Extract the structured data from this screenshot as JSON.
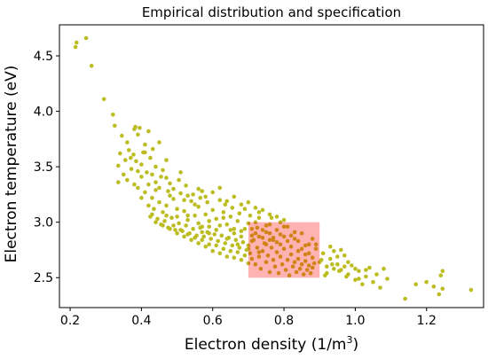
{
  "chart_data": {
    "type": "scatter",
    "title": "Empirical distribution and specification",
    "xlabel": "Electron density (1/m",
    "xlabel_sup": "3",
    "xlabel_suffix": ")",
    "ylabel": "Electron temperature (eV)",
    "xlim": [
      0.17,
      1.36
    ],
    "ylim": [
      2.23,
      4.78
    ],
    "xticks": [
      0.2,
      0.4,
      0.6,
      0.8,
      1.0,
      1.2
    ],
    "xtick_labels": [
      "0.2",
      "0.4",
      "0.6",
      "0.8",
      "1.0",
      "1.2"
    ],
    "yticks": [
      2.5,
      3.0,
      3.5,
      4.0,
      4.5
    ],
    "ytick_labels": [
      "2.5",
      "3.0",
      "3.5",
      "4.0",
      "4.5"
    ],
    "grid": false,
    "legend": "none",
    "series_color": "#bcbd22",
    "specification_region": {
      "x_range": [
        0.7,
        0.9
      ],
      "y_range": [
        2.5,
        3.0
      ],
      "color": "#ff0000",
      "opacity": 0.3
    },
    "points": [
      [
        0.215,
        4.58
      ],
      [
        0.218,
        4.62
      ],
      [
        0.245,
        4.66
      ],
      [
        0.26,
        4.41
      ],
      [
        0.295,
        4.11
      ],
      [
        0.32,
        3.97
      ],
      [
        0.325,
        3.87
      ],
      [
        0.34,
        3.62
      ],
      [
        0.345,
        3.78
      ],
      [
        0.335,
        3.51
      ],
      [
        0.36,
        3.72
      ],
      [
        0.365,
        3.65
      ],
      [
        0.38,
        3.84
      ],
      [
        0.383,
        3.86
      ],
      [
        0.39,
        3.79
      ],
      [
        0.395,
        3.85
      ],
      [
        0.41,
        3.7
      ],
      [
        0.42,
        3.82
      ],
      [
        0.35,
        3.43
      ],
      [
        0.355,
        3.56
      ],
      [
        0.372,
        3.48
      ],
      [
        0.378,
        3.61
      ],
      [
        0.385,
        3.55
      ],
      [
        0.4,
        3.52
      ],
      [
        0.405,
        3.63
      ],
      [
        0.415,
        3.45
      ],
      [
        0.425,
        3.58
      ],
      [
        0.432,
        3.66
      ],
      [
        0.44,
        3.5
      ],
      [
        0.45,
        3.72
      ],
      [
        0.46,
        3.47
      ],
      [
        0.47,
        3.56
      ],
      [
        0.335,
        3.36
      ],
      [
        0.36,
        3.38
      ],
      [
        0.39,
        3.31
      ],
      [
        0.41,
        3.27
      ],
      [
        0.42,
        3.34
      ],
      [
        0.43,
        3.22
      ],
      [
        0.44,
        3.29
      ],
      [
        0.45,
        3.18
      ],
      [
        0.455,
        3.41
      ],
      [
        0.46,
        3.09
      ],
      [
        0.47,
        3.15
      ],
      [
        0.475,
        3.28
      ],
      [
        0.48,
        3.35
      ],
      [
        0.49,
        3.21
      ],
      [
        0.5,
        3.12
      ],
      [
        0.505,
        3.38
      ],
      [
        0.51,
        3.26
      ],
      [
        0.52,
        3.1
      ],
      [
        0.525,
        3.33
      ],
      [
        0.53,
        3.02
      ],
      [
        0.54,
        3.19
      ],
      [
        0.545,
        3.25
      ],
      [
        0.55,
        3.06
      ],
      [
        0.56,
        3.14
      ],
      [
        0.565,
        3.22
      ],
      [
        0.57,
        3.28
      ],
      [
        0.58,
        3.07
      ],
      [
        0.585,
        3.18
      ],
      [
        0.59,
        2.96
      ],
      [
        0.6,
        3.11
      ],
      [
        0.61,
        3.03
      ],
      [
        0.62,
        3.2
      ],
      [
        0.63,
        3.09
      ],
      [
        0.635,
        3.16
      ],
      [
        0.64,
        2.98
      ],
      [
        0.65,
        3.05
      ],
      [
        0.655,
        3.13
      ],
      [
        0.66,
        2.94
      ],
      [
        0.67,
        3.01
      ],
      [
        0.675,
        3.08
      ],
      [
        0.68,
        2.92
      ],
      [
        0.69,
        3.12
      ],
      [
        0.7,
        2.99
      ],
      [
        0.705,
        3.06
      ],
      [
        0.71,
        2.88
      ],
      [
        0.72,
        3.0
      ],
      [
        0.725,
        2.95
      ],
      [
        0.73,
        3.09
      ],
      [
        0.74,
        2.86
      ],
      [
        0.75,
        2.97
      ],
      [
        0.76,
        2.9
      ],
      [
        0.765,
        3.04
      ],
      [
        0.77,
        2.84
      ],
      [
        0.78,
        2.93
      ],
      [
        0.79,
        2.8
      ],
      [
        0.8,
        2.87
      ],
      [
        0.81,
        2.96
      ],
      [
        0.82,
        2.78
      ],
      [
        0.83,
        2.85
      ],
      [
        0.84,
        2.74
      ],
      [
        0.85,
        2.9
      ],
      [
        0.86,
        2.71
      ],
      [
        0.87,
        2.8
      ],
      [
        0.88,
        2.68
      ],
      [
        0.89,
        2.76
      ],
      [
        0.9,
        2.64
      ],
      [
        0.91,
        2.72
      ],
      [
        0.92,
        2.6
      ],
      [
        0.93,
        2.67
      ],
      [
        0.94,
        2.74
      ],
      [
        0.95,
        2.62
      ],
      [
        0.96,
        2.57
      ],
      [
        0.97,
        2.7
      ],
      [
        0.98,
        2.53
      ],
      [
        0.99,
        2.61
      ],
      [
        1.0,
        2.48
      ],
      [
        1.01,
        2.56
      ],
      [
        1.02,
        2.44
      ],
      [
        1.03,
        2.51
      ],
      [
        1.04,
        2.59
      ],
      [
        1.05,
        2.46
      ],
      [
        1.06,
        2.53
      ],
      [
        1.07,
        2.41
      ],
      [
        1.08,
        2.58
      ],
      [
        1.09,
        2.49
      ],
      [
        1.14,
        2.31
      ],
      [
        1.17,
        2.44
      ],
      [
        1.2,
        2.46
      ],
      [
        1.22,
        2.42
      ],
      [
        1.235,
        2.35
      ],
      [
        1.24,
        2.52
      ],
      [
        1.245,
        2.56
      ],
      [
        1.245,
        2.4
      ],
      [
        1.325,
        2.39
      ],
      [
        0.7,
        2.79
      ],
      [
        0.705,
        2.72
      ],
      [
        0.71,
        2.67
      ],
      [
        0.715,
        2.84
      ],
      [
        0.72,
        2.62
      ],
      [
        0.725,
        2.77
      ],
      [
        0.73,
        2.69
      ],
      [
        0.735,
        2.58
      ],
      [
        0.74,
        2.74
      ],
      [
        0.745,
        2.81
      ],
      [
        0.75,
        2.64
      ],
      [
        0.755,
        2.7
      ],
      [
        0.76,
        2.55
      ],
      [
        0.765,
        2.77
      ],
      [
        0.77,
        2.66
      ],
      [
        0.775,
        2.6
      ],
      [
        0.78,
        2.73
      ],
      [
        0.785,
        2.54
      ],
      [
        0.79,
        2.69
      ],
      [
        0.795,
        2.62
      ],
      [
        0.8,
        2.76
      ],
      [
        0.805,
        2.57
      ],
      [
        0.81,
        2.66
      ],
      [
        0.815,
        2.52
      ],
      [
        0.82,
        2.71
      ],
      [
        0.825,
        2.6
      ],
      [
        0.83,
        2.64
      ],
      [
        0.835,
        2.55
      ],
      [
        0.84,
        2.67
      ],
      [
        0.845,
        2.58
      ],
      [
        0.85,
        2.62
      ],
      [
        0.855,
        2.53
      ],
      [
        0.86,
        2.65
      ],
      [
        0.865,
        2.57
      ],
      [
        0.87,
        2.61
      ],
      [
        0.875,
        2.54
      ],
      [
        0.88,
        2.59
      ],
      [
        0.885,
        2.63
      ],
      [
        0.72,
        2.9
      ],
      [
        0.74,
        2.93
      ],
      [
        0.76,
        2.84
      ],
      [
        0.78,
        2.82
      ],
      [
        0.8,
        2.96
      ],
      [
        0.82,
        2.88
      ],
      [
        0.84,
        2.83
      ],
      [
        0.86,
        2.79
      ],
      [
        0.88,
        2.85
      ],
      [
        0.71,
        2.94
      ],
      [
        0.73,
        2.87
      ],
      [
        0.75,
        2.91
      ],
      [
        0.77,
        2.86
      ],
      [
        0.79,
        2.89
      ],
      [
        0.81,
        2.83
      ],
      [
        0.83,
        2.91
      ],
      [
        0.85,
        2.76
      ],
      [
        0.87,
        2.72
      ],
      [
        0.89,
        2.8
      ],
      [
        0.79,
        3.0
      ],
      [
        0.73,
        3.04
      ],
      [
        0.76,
        2.98
      ],
      [
        0.92,
        2.54
      ],
      [
        0.93,
        2.78
      ],
      [
        0.94,
        2.58
      ],
      [
        0.95,
        2.69
      ],
      [
        0.96,
        2.75
      ],
      [
        0.97,
        2.6
      ],
      [
        0.98,
        2.64
      ],
      [
        1.0,
        2.58
      ],
      [
        1.01,
        2.49
      ],
      [
        1.03,
        2.57
      ],
      [
        0.905,
        2.66
      ],
      [
        0.915,
        2.52
      ],
      [
        0.935,
        2.62
      ],
      [
        0.955,
        2.56
      ],
      [
        0.975,
        2.51
      ],
      [
        0.425,
        3.05
      ],
      [
        0.435,
        3.12
      ],
      [
        0.445,
        3.03
      ],
      [
        0.455,
        2.98
      ],
      [
        0.465,
        3.01
      ],
      [
        0.475,
        2.95
      ],
      [
        0.485,
        3.04
      ],
      [
        0.495,
        2.93
      ],
      [
        0.505,
        2.99
      ],
      [
        0.515,
        2.92
      ],
      [
        0.525,
        2.97
      ],
      [
        0.535,
        2.9
      ],
      [
        0.545,
        2.94
      ],
      [
        0.555,
        2.88
      ],
      [
        0.565,
        2.95
      ],
      [
        0.575,
        2.87
      ],
      [
        0.585,
        2.91
      ],
      [
        0.595,
        2.85
      ],
      [
        0.605,
        2.89
      ],
      [
        0.615,
        2.83
      ],
      [
        0.625,
        2.88
      ],
      [
        0.635,
        2.81
      ],
      [
        0.645,
        2.86
      ],
      [
        0.655,
        2.79
      ],
      [
        0.665,
        2.84
      ],
      [
        0.675,
        2.77
      ],
      [
        0.685,
        2.82
      ],
      [
        0.695,
        2.75
      ],
      [
        0.49,
        2.97
      ],
      [
        0.51,
        2.93
      ],
      [
        0.53,
        2.89
      ],
      [
        0.55,
        2.86
      ],
      [
        0.57,
        2.84
      ],
      [
        0.59,
        2.8
      ],
      [
        0.61,
        2.79
      ],
      [
        0.63,
        2.76
      ],
      [
        0.65,
        2.74
      ],
      [
        0.67,
        2.73
      ],
      [
        0.69,
        2.7
      ],
      [
        0.6,
        2.74
      ],
      [
        0.62,
        2.72
      ],
      [
        0.64,
        2.69
      ],
      [
        0.66,
        2.68
      ],
      [
        0.68,
        2.66
      ],
      [
        0.7,
        2.63
      ],
      [
        0.58,
        2.78
      ],
      [
        0.56,
        2.81
      ],
      [
        0.54,
        2.84
      ],
      [
        0.52,
        2.87
      ],
      [
        0.5,
        2.9
      ],
      [
        0.48,
        2.94
      ],
      [
        0.46,
        2.97
      ],
      [
        0.44,
        3.0
      ],
      [
        0.43,
        3.07
      ],
      [
        0.47,
        3.06
      ],
      [
        0.5,
        3.05
      ],
      [
        0.53,
        3.06
      ],
      [
        0.56,
        2.99
      ],
      [
        0.59,
        3.01
      ],
      [
        0.62,
        2.97
      ],
      [
        0.65,
        2.93
      ],
      [
        0.68,
        2.87
      ],
      [
        0.71,
        2.83
      ],
      [
        0.61,
        2.93
      ],
      [
        0.57,
        2.91
      ],
      [
        0.66,
        2.9
      ],
      [
        0.69,
        2.94
      ],
      [
        0.63,
        3.04
      ],
      [
        0.55,
        3.16
      ],
      [
        0.52,
        3.2
      ],
      [
        0.48,
        3.24
      ],
      [
        0.44,
        3.36
      ],
      [
        0.42,
        3.15
      ],
      [
        0.4,
        3.41
      ],
      [
        0.38,
        3.34
      ],
      [
        0.37,
        3.58
      ],
      [
        0.43,
        3.43
      ],
      [
        0.41,
        3.63
      ],
      [
        0.45,
        3.31
      ],
      [
        0.47,
        3.4
      ],
      [
        0.49,
        3.3
      ],
      [
        0.51,
        3.45
      ],
      [
        0.53,
        3.24
      ],
      [
        0.56,
        3.3
      ],
      [
        0.58,
        3.23
      ],
      [
        0.6,
        3.27
      ],
      [
        0.62,
        3.31
      ],
      [
        0.64,
        3.19
      ],
      [
        0.66,
        3.23
      ],
      [
        0.68,
        3.16
      ],
      [
        0.7,
        3.18
      ],
      [
        0.72,
        3.13
      ],
      [
        0.74,
        3.11
      ],
      [
        0.76,
        3.07
      ],
      [
        0.78,
        3.05
      ],
      [
        0.8,
        3.02
      ],
      [
        0.4,
        3.22
      ],
      [
        0.39,
        3.46
      ],
      [
        0.57,
        2.96
      ],
      [
        0.59,
        2.9
      ],
      [
        0.64,
        2.85
      ],
      [
        0.67,
        2.8
      ],
      [
        0.7,
        2.76
      ],
      [
        0.73,
        2.73
      ],
      [
        0.75,
        2.8
      ]
    ]
  }
}
